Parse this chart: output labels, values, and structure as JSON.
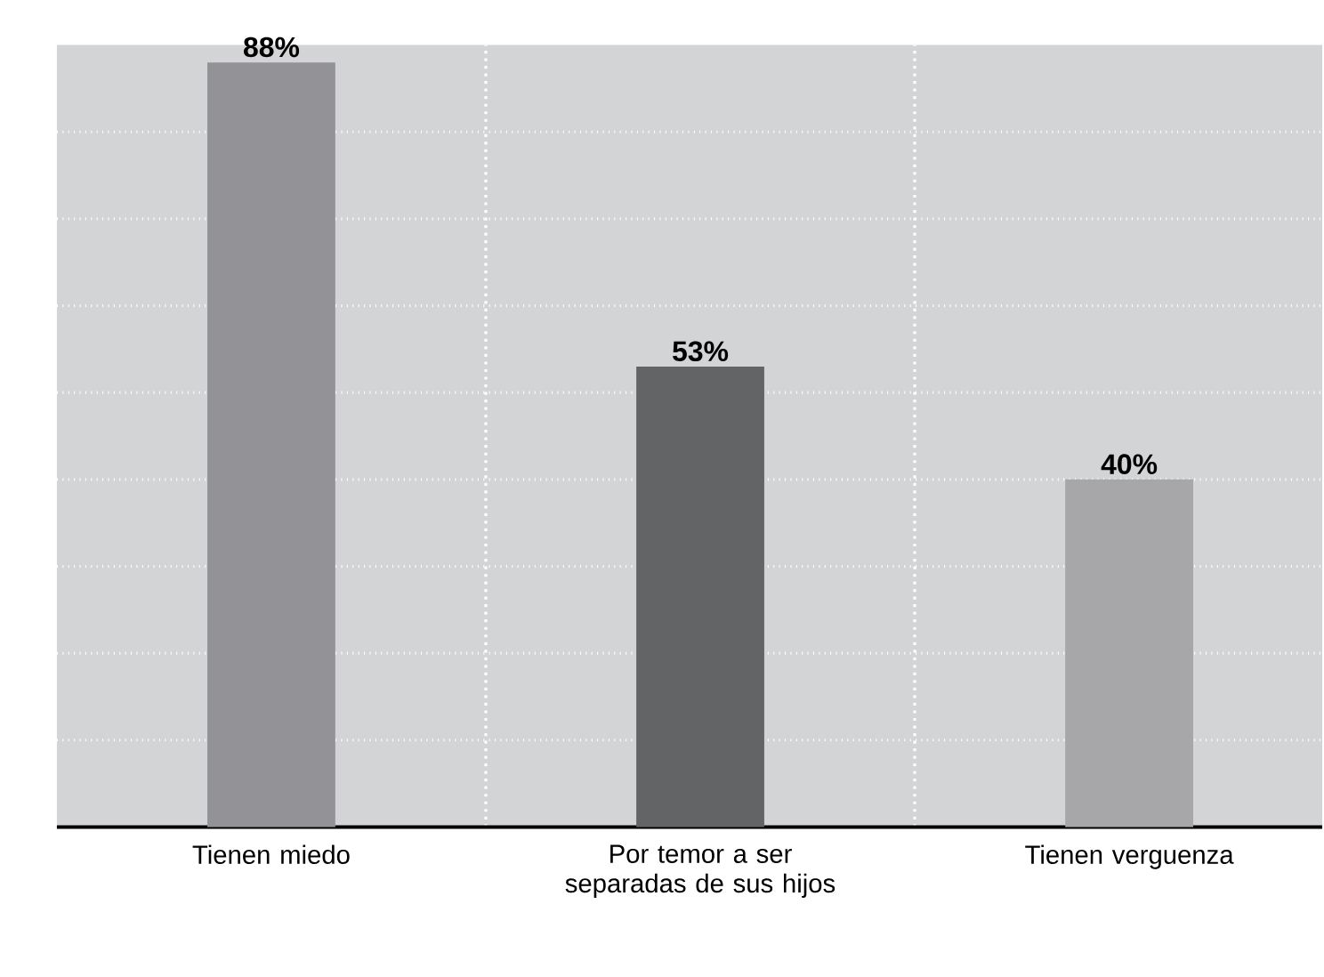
{
  "chart_data": {
    "type": "bar",
    "categories": [
      "Tienen miedo",
      "Por temor a ser separadas de sus hijos",
      "Tienen verguenza"
    ],
    "values": [
      88,
      53,
      40
    ],
    "colors": [
      "#939397",
      "#636466",
      "#a7a7aa"
    ],
    "value_labels": [
      "88%",
      "53%",
      "40%"
    ],
    "ylim": [
      0,
      90
    ],
    "tick_labels": "x",
    "grid": true
  }
}
